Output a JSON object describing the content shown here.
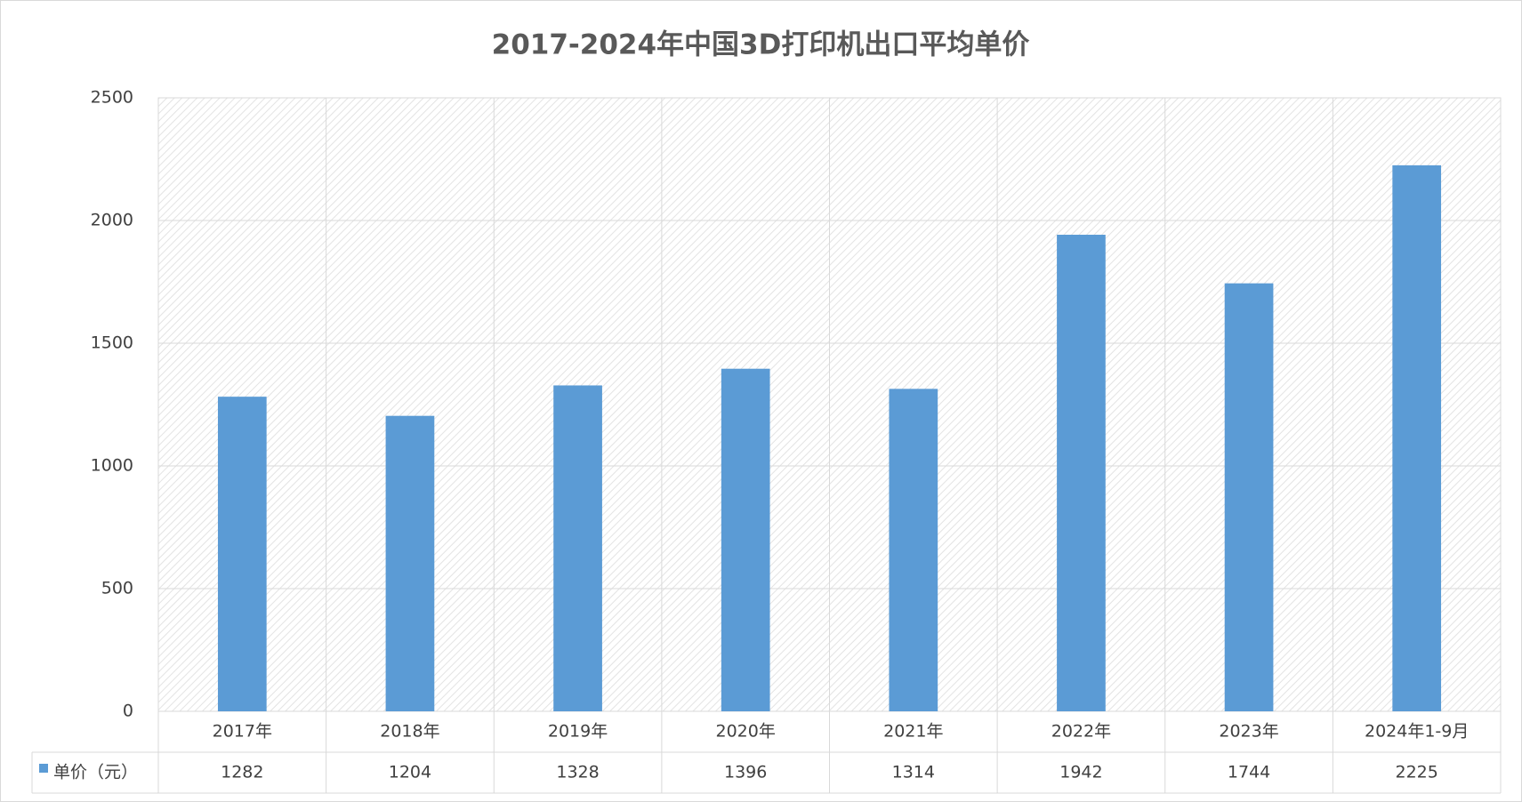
{
  "chart_data": {
    "type": "bar",
    "title": "2017-2024年中国3D打印机出口平均单价",
    "categories": [
      "2017年",
      "2018年",
      "2019年",
      "2020年",
      "2021年",
      "2022年",
      "2023年",
      "2024年1-9月"
    ],
    "series": [
      {
        "name": "单价（元）",
        "color": "#5b9bd5",
        "values": [
          1282,
          1204,
          1328,
          1396,
          1314,
          1942,
          1744,
          2225
        ]
      }
    ],
    "ylim": [
      0,
      2500
    ],
    "yticks": [
      0,
      500,
      1000,
      1500,
      2000,
      2500
    ],
    "grid": true,
    "data_table": true
  }
}
